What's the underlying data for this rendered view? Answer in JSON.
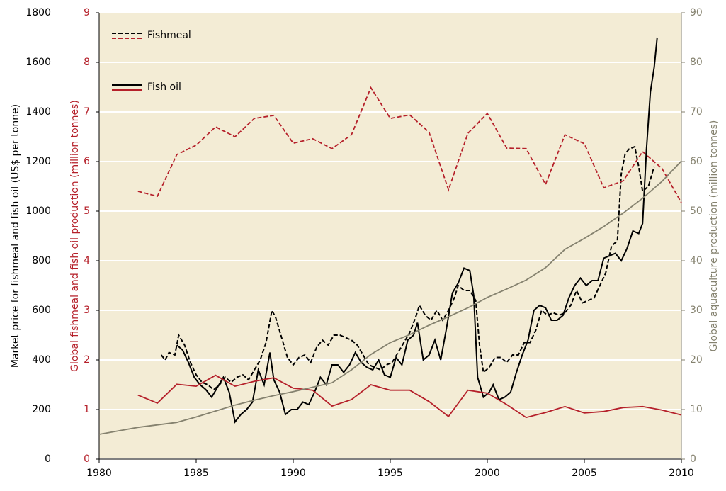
{
  "chart_data": {
    "type": "line",
    "ylabel": "Market price for fishmeal and fish oil (US$ per tonne)",
    "y2label": "Global fishmeal and fish oil production (million tonnes)",
    "y3label": "Global aquaculture production (million tonnes)",
    "xlim": [
      1980,
      2010
    ],
    "xticks": [
      1980,
      1985,
      1990,
      1995,
      2000,
      2005,
      2010
    ],
    "ylim": [
      0,
      1800
    ],
    "yticks": [
      0,
      200,
      400,
      600,
      800,
      1000,
      1200,
      1400,
      1600,
      1800
    ],
    "y2lim": [
      0,
      9
    ],
    "y2ticks": [
      0,
      1,
      2,
      3,
      4,
      5,
      6,
      7,
      8,
      9
    ],
    "y3lim": [
      0,
      90
    ],
    "y3ticks": [
      0,
      10,
      20,
      30,
      40,
      50,
      60,
      70,
      80,
      90
    ],
    "grid": true,
    "legend": "top-left",
    "series": [
      {
        "name": "Fishmeal",
        "color": "#000000",
        "style": "dashed",
        "axis": "y",
        "x": [
          1983.2,
          1983.4,
          1983.6,
          1983.9,
          1984.1,
          1984.4,
          1984.7,
          1985.0,
          1985.3,
          1985.6,
          1985.9,
          1986.2,
          1986.5,
          1986.8,
          1987.1,
          1987.4,
          1987.7,
          1988.0,
          1988.3,
          1988.6,
          1988.9,
          1989.1,
          1989.4,
          1989.7,
          1990.0,
          1990.3,
          1990.6,
          1990.9,
          1991.2,
          1991.5,
          1991.8,
          1992.1,
          1992.4,
          1992.7,
          1993.0,
          1993.3,
          1993.6,
          1993.9,
          1994.2,
          1994.5,
          1994.8,
          1995.1,
          1995.4,
          1995.7,
          1996.0,
          1996.3,
          1996.5,
          1996.8,
          1997.1,
          1997.4,
          1997.7,
          1998.0,
          1998.3,
          1998.5,
          1998.8,
          1999.1,
          1999.4,
          1999.6,
          1999.8,
          2000.1,
          2000.4,
          2000.7,
          2001.0,
          2001.3,
          2001.6,
          2001.9,
          2002.2,
          2002.5,
          2002.8,
          2003.1,
          2003.4,
          2003.7,
          2004.0,
          2004.3,
          2004.6,
          2004.9,
          2005.2,
          2005.5,
          2005.8,
          2006.1,
          2006.4,
          2006.7,
          2006.9,
          2007.1,
          2007.3,
          2007.6,
          2007.8,
          2008.0,
          2008.3,
          2008.6
        ],
        "values": [
          420,
          400,
          430,
          420,
          500,
          460,
          390,
          340,
          310,
          300,
          280,
          300,
          330,
          310,
          330,
          340,
          320,
          360,
          400,
          470,
          600,
          570,
          490,
          410,
          380,
          410,
          420,
          390,
          450,
          480,
          460,
          500,
          500,
          490,
          480,
          460,
          420,
          380,
          370,
          360,
          380,
          390,
          430,
          470,
          510,
          570,
          620,
          580,
          560,
          600,
          560,
          600,
          650,
          700,
          680,
          680,
          640,
          460,
          350,
          370,
          410,
          410,
          390,
          420,
          420,
          470,
          470,
          520,
          600,
          580,
          590,
          580,
          590,
          620,
          680,
          630,
          640,
          650,
          700,
          750,
          860,
          880,
          1150,
          1230,
          1250,
          1260,
          1180,
          1080,
          1100,
          1180
        ]
      },
      {
        "name": "Fishmeal",
        "color": "#b5202a",
        "style": "dashed",
        "axis": "y2",
        "x": [
          1982,
          1983,
          1984,
          1985,
          1986,
          1987,
          1988,
          1989,
          1990,
          1991,
          1992,
          1993,
          1994,
          1995,
          1996,
          1997,
          1998,
          1999,
          2000,
          2001,
          2002,
          2003,
          2004,
          2005,
          2006,
          2007,
          2008,
          2009,
          2010
        ],
        "values": [
          5.4,
          5.3,
          6.14,
          6.33,
          6.7,
          6.5,
          6.87,
          6.93,
          6.37,
          6.46,
          6.26,
          6.54,
          7.49,
          6.87,
          6.94,
          6.59,
          5.43,
          6.57,
          6.97,
          6.27,
          6.26,
          5.54,
          6.54,
          6.36,
          5.47,
          5.61,
          6.2,
          5.86,
          5.17
        ]
      },
      {
        "name": "Fish oil",
        "color": "#000000",
        "style": "solid",
        "axis": "y",
        "x": [
          1984.0,
          1984.3,
          1984.6,
          1984.9,
          1985.2,
          1985.5,
          1985.8,
          1986.1,
          1986.4,
          1986.7,
          1987.0,
          1987.3,
          1987.6,
          1987.9,
          1988.2,
          1988.5,
          1988.8,
          1989.0,
          1989.3,
          1989.6,
          1989.9,
          1990.2,
          1990.5,
          1990.8,
          1991.1,
          1991.4,
          1991.7,
          1992.0,
          1992.3,
          1992.6,
          1992.9,
          1993.2,
          1993.5,
          1993.8,
          1994.1,
          1994.4,
          1994.7,
          1995.0,
          1995.3,
          1995.6,
          1995.9,
          1996.2,
          1996.4,
          1996.7,
          1997.0,
          1997.3,
          1997.6,
          1997.9,
          1998.2,
          1998.5,
          1998.8,
          1999.1,
          1999.3,
          1999.5,
          1999.8,
          2000.1,
          2000.3,
          2000.6,
          2000.9,
          2001.2,
          2001.5,
          2001.8,
          2002.1,
          2002.4,
          2002.7,
          2003.0,
          2003.3,
          2003.6,
          2003.9,
          2004.2,
          2004.5,
          2004.8,
          2005.1,
          2005.4,
          2005.7,
          2006.0,
          2006.3,
          2006.6,
          2006.9,
          2007.2,
          2007.5,
          2007.8,
          2008.0,
          2008.2,
          2008.4,
          2008.6,
          2008.75
        ],
        "values": [
          460,
          440,
          390,
          330,
          300,
          280,
          250,
          290,
          330,
          270,
          150,
          180,
          200,
          230,
          360,
          300,
          430,
          320,
          270,
          180,
          200,
          200,
          230,
          220,
          270,
          330,
          300,
          380,
          380,
          350,
          380,
          430,
          390,
          370,
          360,
          400,
          340,
          330,
          410,
          380,
          480,
          500,
          550,
          400,
          420,
          480,
          400,
          530,
          670,
          710,
          770,
          760,
          660,
          330,
          250,
          270,
          300,
          240,
          250,
          270,
          350,
          420,
          480,
          600,
          620,
          610,
          560,
          560,
          580,
          650,
          700,
          730,
          700,
          720,
          720,
          810,
          820,
          830,
          800,
          850,
          920,
          910,
          950,
          1250,
          1480,
          1580,
          1700
        ]
      },
      {
        "name": "Fish oil",
        "color": "#b5202a",
        "style": "solid",
        "axis": "y2",
        "x": [
          1982,
          1983,
          1984,
          1985,
          1986,
          1987,
          1988,
          1989,
          1990,
          1991,
          1992,
          1993,
          1994,
          1995,
          1996,
          1997,
          1998,
          1999,
          2000,
          2001,
          2002,
          2003,
          2004,
          2005,
          2006,
          2007,
          2008,
          2009,
          2010
        ],
        "values": [
          1.29,
          1.13,
          1.51,
          1.47,
          1.69,
          1.47,
          1.57,
          1.64,
          1.43,
          1.39,
          1.07,
          1.2,
          1.5,
          1.39,
          1.39,
          1.16,
          0.86,
          1.39,
          1.33,
          1.1,
          0.84,
          0.94,
          1.06,
          0.93,
          0.96,
          1.04,
          1.06,
          0.99,
          0.89
        ]
      },
      {
        "color": "#85826f",
        "style": "solid",
        "axis": "y3",
        "x": [
          1980,
          1981,
          1982,
          1983,
          1984,
          1985,
          1986,
          1987,
          1988,
          1989,
          1990,
          1991,
          1992,
          1993,
          1994,
          1995,
          1996,
          1997,
          1998,
          1999,
          2000,
          2001,
          2002,
          2003,
          2004,
          2005,
          2006,
          2007,
          2008,
          2009,
          2010
        ],
        "values": [
          5.0,
          5.7,
          6.4,
          6.9,
          7.4,
          8.5,
          9.7,
          10.9,
          11.9,
          12.8,
          13.6,
          14.5,
          15.4,
          18.0,
          21.1,
          23.5,
          25.1,
          27.0,
          28.7,
          30.5,
          32.6,
          34.3,
          36.1,
          38.6,
          42.3,
          44.5,
          46.9,
          49.6,
          52.6,
          56.0,
          60.1
        ]
      }
    ]
  }
}
